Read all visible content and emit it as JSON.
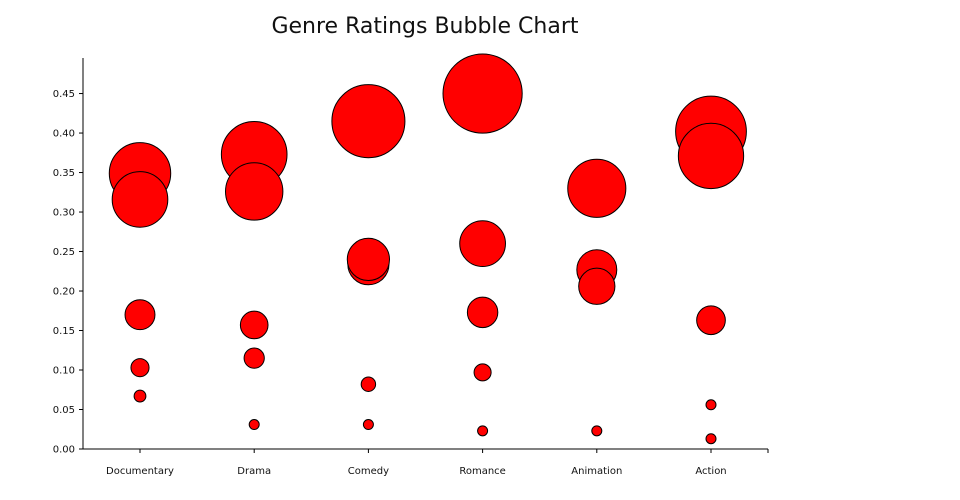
{
  "chart_data": {
    "type": "scatter",
    "title": "Genre Ratings Bubble Chart",
    "xlabel": "",
    "ylabel": "",
    "categories": [
      "Documentary",
      "Drama",
      "Comedy",
      "Romance",
      "Animation",
      "Action"
    ],
    "ylim": [
      0,
      0.495
    ],
    "yticks": [
      "0.00",
      "0.05",
      "0.10",
      "0.15",
      "0.20",
      "0.25",
      "0.30",
      "0.35",
      "0.40",
      "0.45"
    ],
    "grid": false,
    "bubble_color": "#ff0000",
    "bubble_stroke": "#000000",
    "points": [
      {
        "category": "Documentary",
        "y": 0.349
      },
      {
        "category": "Documentary",
        "y": 0.316
      },
      {
        "category": "Documentary",
        "y": 0.17
      },
      {
        "category": "Documentary",
        "y": 0.103
      },
      {
        "category": "Documentary",
        "y": 0.067
      },
      {
        "category": "Drama",
        "y": 0.373
      },
      {
        "category": "Drama",
        "y": 0.326
      },
      {
        "category": "Drama",
        "y": 0.157
      },
      {
        "category": "Drama",
        "y": 0.115
      },
      {
        "category": "Drama",
        "y": 0.031
      },
      {
        "category": "Comedy",
        "y": 0.415
      },
      {
        "category": "Comedy",
        "y": 0.234
      },
      {
        "category": "Comedy",
        "y": 0.24
      },
      {
        "category": "Comedy",
        "y": 0.082
      },
      {
        "category": "Comedy",
        "y": 0.031
      },
      {
        "category": "Romance",
        "y": 0.45
      },
      {
        "category": "Romance",
        "y": 0.26
      },
      {
        "category": "Romance",
        "y": 0.173
      },
      {
        "category": "Romance",
        "y": 0.097
      },
      {
        "category": "Romance",
        "y": 0.023
      },
      {
        "category": "Animation",
        "y": 0.33
      },
      {
        "category": "Animation",
        "y": 0.227
      },
      {
        "category": "Animation",
        "y": 0.206
      },
      {
        "category": "Animation",
        "y": 0.023
      },
      {
        "category": "Action",
        "y": 0.402
      },
      {
        "category": "Action",
        "y": 0.371
      },
      {
        "category": "Action",
        "y": 0.163
      },
      {
        "category": "Action",
        "y": 0.056
      },
      {
        "category": "Action",
        "y": 0.013
      }
    ]
  }
}
